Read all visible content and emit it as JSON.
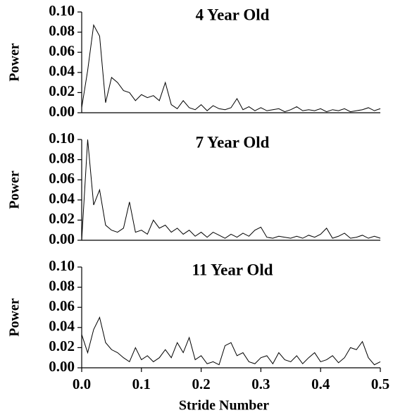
{
  "chart_data": [
    {
      "type": "line",
      "title": "4 Year Old",
      "ylabel": "Power",
      "color": "#000000",
      "x": [
        0,
        0.01,
        0.02,
        0.03,
        0.04,
        0.05,
        0.06,
        0.07,
        0.08,
        0.09,
        0.1,
        0.11,
        0.12,
        0.13,
        0.14,
        0.15,
        0.16,
        0.17,
        0.18,
        0.19,
        0.2,
        0.21,
        0.22,
        0.23,
        0.24,
        0.25,
        0.26,
        0.27,
        0.28,
        0.29,
        0.3,
        0.31,
        0.32,
        0.33,
        0.34,
        0.35,
        0.36,
        0.37,
        0.38,
        0.39,
        0.4,
        0.41,
        0.42,
        0.43,
        0.44,
        0.45,
        0.46,
        0.47,
        0.48,
        0.49,
        0.5
      ],
      "values": [
        0.005,
        0.042,
        0.087,
        0.076,
        0.01,
        0.035,
        0.03,
        0.022,
        0.02,
        0.012,
        0.018,
        0.015,
        0.017,
        0.012,
        0.03,
        0.008,
        0.004,
        0.012,
        0.005,
        0.003,
        0.008,
        0.002,
        0.007,
        0.004,
        0.003,
        0.005,
        0.014,
        0.003,
        0.006,
        0.002,
        0.005,
        0.002,
        0.003,
        0.004,
        0.001,
        0.003,
        0.006,
        0.002,
        0.003,
        0.002,
        0.004,
        0.001,
        0.003,
        0.002,
        0.004,
        0.001,
        0.002,
        0.003,
        0.005,
        0.002,
        0.004
      ],
      "xlim": [
        0,
        0.5
      ],
      "ylim": [
        0,
        0.1
      ],
      "yticks": [
        {
          "value": 0,
          "label": "0.00"
        },
        {
          "value": 0.02,
          "label": "0.02"
        },
        {
          "value": 0.04,
          "label": "0.04"
        },
        {
          "value": 0.06,
          "label": "0.06"
        },
        {
          "value": 0.08,
          "label": "0.08"
        },
        {
          "value": 0.1,
          "label": "0.10"
        }
      ]
    },
    {
      "type": "line",
      "title": "7 Year Old",
      "ylabel": "Power",
      "color": "#000000",
      "x": [
        0,
        0.01,
        0.02,
        0.03,
        0.04,
        0.05,
        0.06,
        0.07,
        0.08,
        0.09,
        0.1,
        0.11,
        0.12,
        0.13,
        0.14,
        0.15,
        0.16,
        0.17,
        0.18,
        0.19,
        0.2,
        0.21,
        0.22,
        0.23,
        0.24,
        0.25,
        0.26,
        0.27,
        0.28,
        0.29,
        0.3,
        0.31,
        0.32,
        0.33,
        0.34,
        0.35,
        0.36,
        0.37,
        0.38,
        0.39,
        0.4,
        0.41,
        0.42,
        0.43,
        0.44,
        0.45,
        0.46,
        0.47,
        0.48,
        0.49,
        0.5
      ],
      "values": [
        0,
        0.1,
        0.035,
        0.05,
        0.015,
        0.01,
        0.008,
        0.012,
        0.038,
        0.008,
        0.01,
        0.006,
        0.02,
        0.012,
        0.015,
        0.008,
        0.012,
        0.006,
        0.01,
        0.004,
        0.008,
        0.003,
        0.008,
        0.005,
        0.002,
        0.006,
        0.003,
        0.007,
        0.004,
        0.01,
        0.013,
        0.003,
        0.002,
        0.004,
        0.003,
        0.002,
        0.004,
        0.002,
        0.005,
        0.003,
        0.006,
        0.012,
        0.002,
        0.004,
        0.007,
        0.002,
        0.003,
        0.005,
        0.002,
        0.004,
        0.002
      ],
      "xlim": [
        0,
        0.5
      ],
      "ylim": [
        0,
        0.1
      ],
      "yticks": [
        {
          "value": 0,
          "label": "0.00"
        },
        {
          "value": 0.02,
          "label": "0.02"
        },
        {
          "value": 0.04,
          "label": "0.04"
        },
        {
          "value": 0.06,
          "label": "0.06"
        },
        {
          "value": 0.08,
          "label": "0.08"
        },
        {
          "value": 0.1,
          "label": "0.10"
        }
      ]
    },
    {
      "type": "line",
      "title": "11 Year Old",
      "ylabel": "Power",
      "xlabel": "Stride Number",
      "color": "#000000",
      "x": [
        0,
        0.01,
        0.02,
        0.03,
        0.04,
        0.05,
        0.06,
        0.07,
        0.08,
        0.09,
        0.1,
        0.11,
        0.12,
        0.13,
        0.14,
        0.15,
        0.16,
        0.17,
        0.18,
        0.19,
        0.2,
        0.21,
        0.22,
        0.23,
        0.24,
        0.25,
        0.26,
        0.27,
        0.28,
        0.29,
        0.3,
        0.31,
        0.32,
        0.33,
        0.34,
        0.35,
        0.36,
        0.37,
        0.38,
        0.39,
        0.4,
        0.41,
        0.42,
        0.43,
        0.44,
        0.45,
        0.46,
        0.47,
        0.48,
        0.49,
        0.5
      ],
      "values": [
        0.033,
        0.015,
        0.038,
        0.05,
        0.025,
        0.018,
        0.015,
        0.01,
        0.006,
        0.02,
        0.008,
        0.012,
        0.006,
        0.01,
        0.018,
        0.01,
        0.025,
        0.015,
        0.03,
        0.008,
        0.012,
        0.004,
        0.006,
        0.003,
        0.022,
        0.025,
        0.012,
        0.015,
        0.006,
        0.004,
        0.01,
        0.012,
        0.004,
        0.015,
        0.008,
        0.006,
        0.012,
        0.004,
        0.01,
        0.015,
        0.006,
        0.008,
        0.012,
        0.005,
        0.01,
        0.02,
        0.018,
        0.026,
        0.01,
        0.003,
        0.006
      ],
      "xlim": [
        0,
        0.5
      ],
      "ylim": [
        0,
        0.1
      ],
      "xticks": [
        {
          "value": 0,
          "label": "0.0"
        },
        0.1,
        0.2,
        0.3,
        0.4,
        0.5
      ],
      "yticks": [
        {
          "value": 0,
          "label": "0.00"
        },
        {
          "value": 0.02,
          "label": "0.02"
        },
        {
          "value": 0.04,
          "label": "0.04"
        },
        {
          "value": 0.06,
          "label": "0.06"
        },
        {
          "value": 0.08,
          "label": "0.08"
        },
        {
          "value": 0.1,
          "label": "0.10"
        }
      ]
    }
  ]
}
